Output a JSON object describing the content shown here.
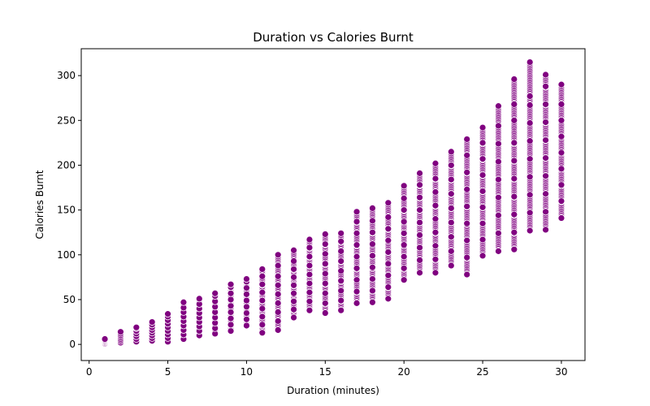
{
  "chart_data": {
    "type": "scatter",
    "title": "Duration vs Calories Burnt",
    "xlabel": "Duration (minutes)",
    "ylabel": "Calories Burnt",
    "xlim": [
      -0.5,
      31.5
    ],
    "ylim": [
      -18,
      330
    ],
    "xticks": [
      0,
      5,
      10,
      15,
      20,
      25,
      30
    ],
    "yticks": [
      0,
      50,
      100,
      150,
      200,
      250,
      300
    ],
    "grid": false,
    "legend": "none",
    "colors": {
      "marker": "#800080",
      "marker_edge": "#ffffff",
      "axis": "#000000"
    },
    "series": [
      {
        "points_by_duration": [
          {
            "x": 1,
            "y_min": 1,
            "y_max": 6,
            "y": [
              1,
              2,
              3,
              4,
              5,
              6
            ]
          },
          {
            "x": 2,
            "y_min": 2,
            "y_max": 14,
            "y": [
              2,
              4,
              6,
              8,
              10,
              12,
              14
            ]
          },
          {
            "x": 3,
            "y_min": 3,
            "y_max": 19,
            "y": [
              3,
              6,
              9,
              12,
              15,
              18,
              19
            ]
          },
          {
            "x": 4,
            "y_min": 4,
            "y_max": 25,
            "y": [
              4,
              7,
              10,
              13,
              16,
              19,
              22,
              25
            ]
          },
          {
            "x": 5,
            "y_min": 3,
            "y_max": 34,
            "y": [
              3,
              7,
              11,
              15,
              19,
              23,
              27,
              31,
              34
            ]
          },
          {
            "x": 6,
            "y_min": 6,
            "y_max": 47,
            "y": [
              6,
              11,
              16,
              21,
              26,
              31,
              36,
              41,
              47
            ]
          },
          {
            "x": 7,
            "y_min": 10,
            "y_max": 51,
            "y": [
              10,
              15,
              20,
              25,
              30,
              35,
              40,
              45,
              51
            ]
          },
          {
            "x": 8,
            "y_min": 12,
            "y_max": 57,
            "y": [
              12,
              18,
              24,
              30,
              36,
              42,
              48,
              54,
              57
            ]
          },
          {
            "x": 9,
            "y_min": 15,
            "y_max": 67,
            "y": [
              15,
              22,
              29,
              36,
              43,
              50,
              57,
              64,
              67
            ]
          },
          {
            "x": 10,
            "y_min": 21,
            "y_max": 73,
            "y": [
              21,
              28,
              35,
              42,
              49,
              56,
              63,
              70,
              73
            ]
          },
          {
            "x": 11,
            "y_min": 13,
            "y_max": 84,
            "y": [
              13,
              22,
              31,
              40,
              49,
              58,
              67,
              76,
              84
            ]
          },
          {
            "x": 12,
            "y_min": 16,
            "y_max": 100,
            "y": [
              16,
              26,
              36,
              46,
              56,
              66,
              76,
              88,
              100
            ]
          },
          {
            "x": 13,
            "y_min": 30,
            "y_max": 105,
            "y": [
              30,
              39,
              48,
              57,
              66,
              75,
              84,
              93,
              105
            ]
          },
          {
            "x": 14,
            "y_min": 38,
            "y_max": 117,
            "y": [
              38,
              48,
              58,
              68,
              78,
              88,
              98,
              108,
              117
            ]
          },
          {
            "x": 15,
            "y_min": 35,
            "y_max": 123,
            "y": [
              35,
              46,
              57,
              68,
              79,
              90,
              101,
              112,
              123
            ]
          },
          {
            "x": 16,
            "y_min": 38,
            "y_max": 124,
            "y": [
              38,
              49,
              60,
              71,
              82,
              93,
              104,
              115,
              124
            ]
          },
          {
            "x": 17,
            "y_min": 46,
            "y_max": 148,
            "y": [
              46,
              59,
              72,
              85,
              98,
              111,
              124,
              137,
              148
            ]
          },
          {
            "x": 18,
            "y_min": 47,
            "y_max": 152,
            "y": [
              47,
              60,
              73,
              86,
              99,
              112,
              125,
              138,
              152
            ]
          },
          {
            "x": 19,
            "y_min": 51,
            "y_max": 158,
            "y": [
              51,
              64,
              77,
              90,
              103,
              116,
              129,
              142,
              158
            ]
          },
          {
            "x": 20,
            "y_min": 72,
            "y_max": 177,
            "y": [
              72,
              85,
              98,
              111,
              124,
              137,
              150,
              163,
              177
            ]
          },
          {
            "x": 21,
            "y_min": 80,
            "y_max": 191,
            "y": [
              80,
              94,
              108,
              122,
              136,
              150,
              164,
              178,
              191
            ]
          },
          {
            "x": 22,
            "y_min": 80,
            "y_max": 202,
            "y": [
              80,
              95,
              110,
              125,
              140,
              155,
              170,
              185,
              202
            ]
          },
          {
            "x": 23,
            "y_min": 88,
            "y_max": 215,
            "y": [
              88,
              104,
              120,
              136,
              152,
              168,
              184,
              200,
              215
            ]
          },
          {
            "x": 24,
            "y_min": 78,
            "y_max": 229,
            "y": [
              78,
              97,
              116,
              135,
              154,
              173,
              192,
              211,
              229
            ]
          },
          {
            "x": 25,
            "y_min": 99,
            "y_max": 242,
            "y": [
              99,
              117,
              135,
              153,
              171,
              189,
              207,
              225,
              242
            ]
          },
          {
            "x": 26,
            "y_min": 104,
            "y_max": 266,
            "y": [
              104,
              124,
              144,
              164,
              184,
              204,
              224,
              244,
              266
            ]
          },
          {
            "x": 27,
            "y_min": 106,
            "y_max": 296,
            "y": [
              106,
              125,
              145,
              165,
              185,
              205,
              225,
              250,
              268,
              296
            ]
          },
          {
            "x": 28,
            "y_min": 127,
            "y_max": 315,
            "y": [
              127,
              147,
              167,
              187,
              207,
              227,
              247,
              267,
              277,
              315
            ]
          },
          {
            "x": 29,
            "y_min": 128,
            "y_max": 301,
            "y": [
              128,
              148,
              168,
              188,
              208,
              228,
              248,
              268,
              288,
              301
            ]
          },
          {
            "x": 30,
            "y_min": 141,
            "y_max": 290,
            "y": [
              141,
              160,
              178,
              196,
              214,
              232,
              250,
              268,
              290
            ]
          }
        ]
      }
    ]
  }
}
